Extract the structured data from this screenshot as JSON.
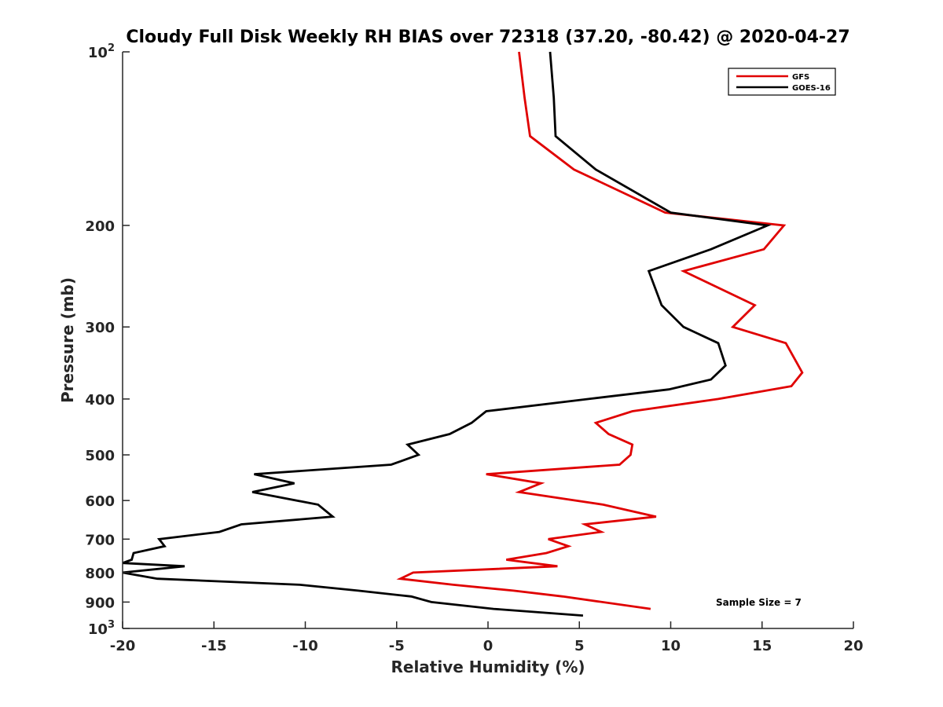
{
  "chart_data": {
    "type": "line",
    "title": "Cloudy Full Disk Weekly RH BIAS over 72318 (37.20, -80.42) @ 2020-04-27",
    "xlabel": "Relative Humidity (%)",
    "ylabel": "Pressure (mb)",
    "xlim": [
      -20,
      20
    ],
    "ylim": [
      100,
      1000
    ],
    "yscale": "log",
    "yreversed": true,
    "grid": false,
    "x_ticks": [
      -20,
      -15,
      -10,
      -5,
      0,
      5,
      10,
      15,
      20
    ],
    "x_tick_labels": [
      "-20",
      "-15",
      "-10",
      "-5",
      "0",
      "5",
      "10",
      "15",
      "20"
    ],
    "y_ticks": [
      {
        "value": 100,
        "base": "10",
        "exp": "2"
      },
      {
        "value": 200,
        "label": "200"
      },
      {
        "value": 300,
        "label": "300"
      },
      {
        "value": 400,
        "label": "400"
      },
      {
        "value": 500,
        "label": "500"
      },
      {
        "value": 600,
        "label": "600"
      },
      {
        "value": 700,
        "label": "700"
      },
      {
        "value": 800,
        "label": "800"
      },
      {
        "value": 900,
        "label": "900"
      },
      {
        "value": 1000,
        "base": "10",
        "exp": "3"
      }
    ],
    "legend_position": "top-right",
    "series": [
      {
        "name": "GFS",
        "color": "#e00000",
        "points": [
          [
            1.7,
            100
          ],
          [
            2.0,
            120
          ],
          [
            2.3,
            140
          ],
          [
            4.7,
            160
          ],
          [
            9.7,
            190
          ],
          [
            16.2,
            200
          ],
          [
            15.1,
            220
          ],
          [
            10.7,
            240
          ],
          [
            14.6,
            275
          ],
          [
            13.4,
            300
          ],
          [
            16.3,
            320
          ],
          [
            17.2,
            360
          ],
          [
            16.6,
            380
          ],
          [
            12.6,
            400
          ],
          [
            7.9,
            420
          ],
          [
            5.9,
            440
          ],
          [
            6.6,
            460
          ],
          [
            7.9,
            480
          ],
          [
            7.8,
            500
          ],
          [
            7.2,
            520
          ],
          [
            -0.1,
            540
          ],
          [
            2.9,
            560
          ],
          [
            1.7,
            580
          ],
          [
            6.3,
            610
          ],
          [
            9.2,
            640
          ],
          [
            5.3,
            660
          ],
          [
            6.2,
            680
          ],
          [
            3.3,
            700
          ],
          [
            4.4,
            720
          ],
          [
            3.2,
            740
          ],
          [
            1.0,
            760
          ],
          [
            3.8,
            780
          ],
          [
            -4.1,
            800
          ],
          [
            -4.8,
            820
          ],
          [
            -1.9,
            840
          ],
          [
            1.4,
            860
          ],
          [
            4.1,
            880
          ],
          [
            8.9,
            925
          ]
        ]
      },
      {
        "name": "GOES-16",
        "color": "#000000",
        "points": [
          [
            3.4,
            100
          ],
          [
            3.6,
            120
          ],
          [
            3.7,
            140
          ],
          [
            5.9,
            160
          ],
          [
            10.0,
            190
          ],
          [
            15.3,
            200
          ],
          [
            12.2,
            220
          ],
          [
            8.8,
            240
          ],
          [
            9.5,
            275
          ],
          [
            10.7,
            300
          ],
          [
            12.6,
            320
          ],
          [
            13.0,
            350
          ],
          [
            12.2,
            370
          ],
          [
            9.9,
            385
          ],
          [
            5.5,
            400
          ],
          [
            -0.1,
            420
          ],
          [
            -0.9,
            440
          ],
          [
            -2.1,
            460
          ],
          [
            -4.4,
            480
          ],
          [
            -3.8,
            500
          ],
          [
            -5.3,
            520
          ],
          [
            -12.8,
            540
          ],
          [
            -10.6,
            560
          ],
          [
            -12.9,
            580
          ],
          [
            -9.3,
            610
          ],
          [
            -8.5,
            640
          ],
          [
            -13.5,
            660
          ],
          [
            -14.7,
            680
          ],
          [
            -18.0,
            700
          ],
          [
            -17.7,
            720
          ],
          [
            -19.4,
            740
          ],
          [
            -19.5,
            760
          ],
          [
            -20.0,
            770
          ],
          [
            -16.6,
            780
          ],
          [
            -20.0,
            800
          ],
          [
            -18.1,
            820
          ],
          [
            -10.3,
            840
          ],
          [
            -7.1,
            860
          ],
          [
            -4.2,
            880
          ],
          [
            -3.1,
            900
          ],
          [
            0.3,
            925
          ],
          [
            5.2,
            950
          ]
        ]
      }
    ],
    "annotations": [
      "Sample Size = 7"
    ]
  }
}
